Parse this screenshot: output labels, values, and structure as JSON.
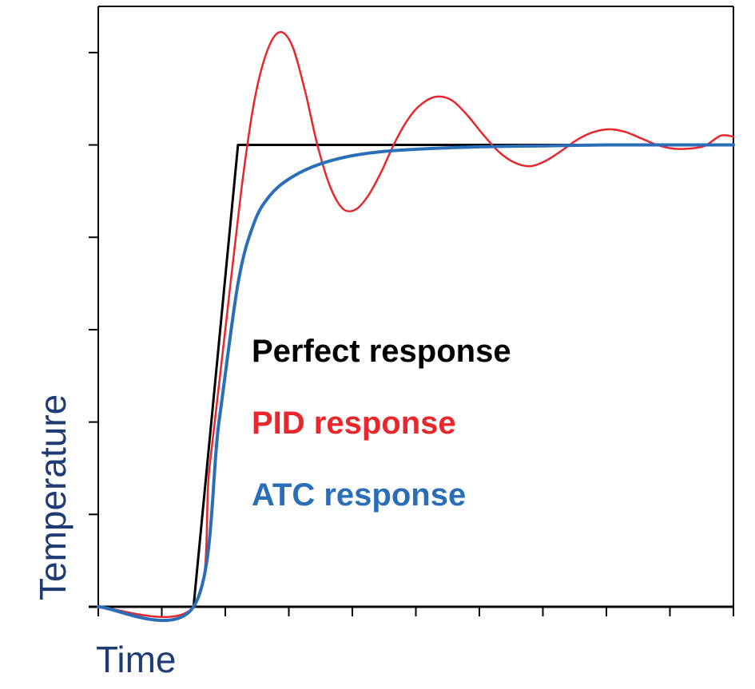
{
  "chart_data": {
    "type": "line",
    "title": "",
    "xlabel": "Time",
    "ylabel": "Temperature",
    "xlim": [
      0,
      10
    ],
    "ylim": [
      0,
      6.5
    ],
    "x_ticks": [
      0,
      1,
      2,
      3,
      4,
      5,
      6,
      7,
      8,
      9,
      10
    ],
    "y_ticks": [
      0,
      1,
      2,
      3,
      4,
      5,
      6
    ],
    "tick_labels_shown": false,
    "grid": false,
    "legend_position": "center",
    "series": [
      {
        "name": "Perfect response",
        "color": "#000000",
        "x": [
          0,
          1.5,
          2.2,
          10
        ],
        "y": [
          0,
          0,
          5,
          5
        ]
      },
      {
        "name": "PID response",
        "color": "#e8262b",
        "x": [
          0,
          1.5,
          1.75,
          2.0,
          2.25,
          2.45,
          2.65,
          2.85,
          3.05,
          3.25,
          3.45,
          3.65,
          3.85,
          4.05,
          4.25,
          4.45,
          4.65,
          4.85,
          5.05,
          5.3,
          5.55,
          5.8,
          6.05,
          6.3,
          6.55,
          6.8,
          7.05,
          7.3,
          7.55,
          7.8,
          8.05,
          8.3,
          8.55,
          8.8,
          9.05,
          9.3,
          9.55,
          9.8,
          10.0
        ],
        "y": [
          0,
          0,
          1.5,
          3.0,
          4.5,
          5.45,
          6.0,
          6.22,
          6.08,
          5.6,
          5.0,
          4.55,
          4.31,
          4.3,
          4.45,
          4.7,
          5.0,
          5.25,
          5.42,
          5.52,
          5.49,
          5.33,
          5.12,
          4.93,
          4.81,
          4.77,
          4.83,
          4.94,
          5.06,
          5.14,
          5.17,
          5.14,
          5.07,
          5.0,
          4.96,
          4.96,
          4.99,
          5.1,
          5.09
        ]
      },
      {
        "name": "ATC response",
        "color": "#2a6eb8",
        "x": [
          0,
          1.5,
          1.9,
          2.2,
          2.45,
          2.7,
          3.0,
          3.4,
          3.9,
          4.5,
          5.2,
          6.0,
          7.0,
          8.0,
          9.0,
          10.0
        ],
        "y": [
          0,
          0,
          2.0,
          3.5,
          4.15,
          4.45,
          4.63,
          4.77,
          4.87,
          4.93,
          4.96,
          4.98,
          4.99,
          5.0,
          5.0,
          5.0
        ]
      }
    ]
  }
}
